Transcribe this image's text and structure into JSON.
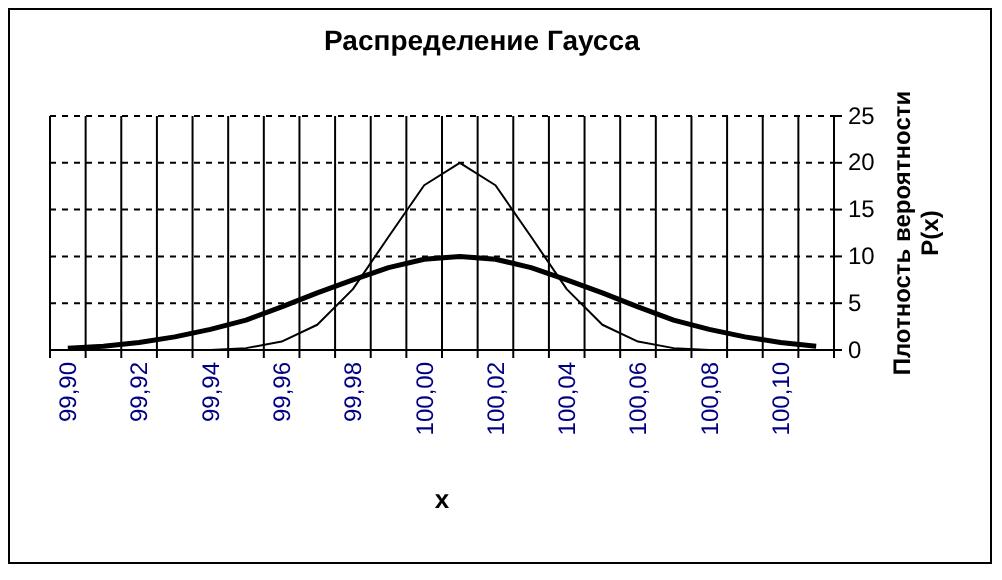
{
  "chart_data": {
    "type": "line",
    "title": "Распределение Гаусса",
    "xlabel": "x",
    "ylabel": "Плотность вероятности\nP(x)",
    "categories": [
      "99,90",
      null,
      "99,92",
      null,
      "99,94",
      null,
      "99,96",
      null,
      "99,98",
      null,
      "100,00",
      null,
      "100,02",
      null,
      "100,04",
      null,
      "100,06",
      null,
      "100,08",
      null,
      "100,10",
      null
    ],
    "series": [
      {
        "color": "#000000",
        "values": [
          0.2,
          0.4,
          0.8,
          1.4,
          2.2,
          3.2,
          4.6,
          6.1,
          7.5,
          8.8,
          9.7,
          10,
          9.7,
          8.8,
          7.5,
          6.1,
          4.6,
          3.2,
          2.2,
          1.4,
          0.8,
          0.4
        ]
      },
      {
        "color": "#000000",
        "values": [
          0,
          0,
          0,
          0,
          0,
          0.2,
          0.9,
          2.7,
          6.5,
          12.1,
          17.6,
          20,
          17.6,
          12.1,
          6.5,
          2.7,
          0.9,
          0.2,
          0,
          0,
          0,
          0
        ]
      }
    ],
    "ylim": [
      0,
      25
    ],
    "yticks": [
      0,
      5,
      10,
      15,
      20,
      25
    ],
    "grid": true,
    "marker": "none",
    "line_style": "solid"
  }
}
